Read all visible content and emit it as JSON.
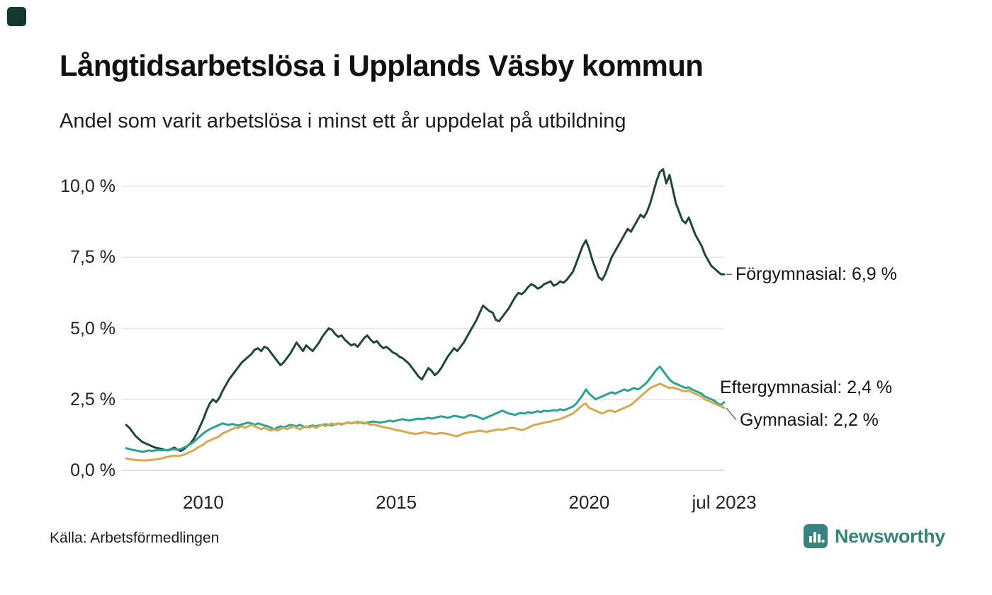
{
  "page": {
    "source": "Källa: Arbetsförmedlingen",
    "brand": {
      "name": "Newsworthy",
      "color": "#3a837c",
      "icon": "bar-chart-icon"
    }
  },
  "chart_data": {
    "type": "line",
    "title": "Långtidsarbetslösa i Upplands Väsby kommun",
    "subtitle": "Andel som varit arbetslösa i minst ett år uppdelat på utbildning",
    "x_unit": "month",
    "x_start_year": 2008,
    "x_end_label": "jul 2023",
    "x_ticks": [
      {
        "t": 2010,
        "label": "2010"
      },
      {
        "t": 2015,
        "label": "2015"
      },
      {
        "t": 2020,
        "label": "2020"
      },
      {
        "t": 2023.5,
        "label": "jul 2023"
      }
    ],
    "y_ticks": [
      {
        "v": 0,
        "label": "0,0 %"
      },
      {
        "v": 2.5,
        "label": "2,5 %"
      },
      {
        "v": 5,
        "label": "5,0 %"
      },
      {
        "v": 7.5,
        "label": "7,5 %"
      },
      {
        "v": 10,
        "label": "10,0 %"
      }
    ],
    "ylim": [
      0,
      10.8
    ],
    "grid": true,
    "legend_position": "end-of-line-labels",
    "series": [
      {
        "name": "Förgymnasial",
        "slug": "forgymnasial",
        "color": "#20453f",
        "end_value": 6.9,
        "end_label": "Förgymnasial: 6,9 %",
        "label_dy": 0,
        "label_x": 1038,
        "values": [
          1.6,
          1.5,
          1.35,
          1.2,
          1.1,
          1.0,
          0.95,
          0.9,
          0.85,
          0.8,
          0.78,
          0.75,
          0.72,
          0.7,
          0.75,
          0.8,
          0.72,
          0.68,
          0.75,
          0.85,
          0.95,
          1.1,
          1.3,
          1.55,
          1.8,
          2.1,
          2.35,
          2.5,
          2.4,
          2.55,
          2.8,
          3.0,
          3.2,
          3.35,
          3.5,
          3.65,
          3.8,
          3.9,
          4.0,
          4.1,
          4.25,
          4.3,
          4.2,
          4.35,
          4.3,
          4.15,
          4.0,
          3.85,
          3.7,
          3.8,
          3.95,
          4.1,
          4.3,
          4.5,
          4.35,
          4.2,
          4.4,
          4.3,
          4.2,
          4.35,
          4.5,
          4.7,
          4.85,
          5.0,
          4.95,
          4.8,
          4.7,
          4.75,
          4.6,
          4.5,
          4.4,
          4.45,
          4.35,
          4.5,
          4.65,
          4.75,
          4.6,
          4.5,
          4.55,
          4.4,
          4.3,
          4.35,
          4.25,
          4.15,
          4.1,
          4.0,
          3.95,
          3.85,
          3.75,
          3.6,
          3.45,
          3.3,
          3.2,
          3.4,
          3.6,
          3.5,
          3.35,
          3.45,
          3.6,
          3.8,
          4.0,
          4.15,
          4.3,
          4.2,
          4.35,
          4.5,
          4.7,
          4.9,
          5.1,
          5.3,
          5.55,
          5.8,
          5.7,
          5.6,
          5.55,
          5.3,
          5.25,
          5.4,
          5.55,
          5.7,
          5.9,
          6.1,
          6.25,
          6.2,
          6.3,
          6.45,
          6.55,
          6.5,
          6.4,
          6.45,
          6.55,
          6.6,
          6.65,
          6.5,
          6.55,
          6.65,
          6.6,
          6.7,
          6.85,
          7.0,
          7.3,
          7.6,
          7.9,
          8.1,
          7.8,
          7.4,
          7.1,
          6.8,
          6.7,
          6.9,
          7.2,
          7.5,
          7.7,
          7.9,
          8.1,
          8.3,
          8.5,
          8.4,
          8.6,
          8.8,
          9.0,
          8.9,
          9.1,
          9.4,
          9.8,
          10.2,
          10.5,
          10.6,
          10.1,
          10.4,
          9.9,
          9.4,
          9.1,
          8.8,
          8.7,
          8.9,
          8.6,
          8.3,
          8.1,
          7.9,
          7.6,
          7.4,
          7.2,
          7.1,
          7.0,
          6.9,
          6.9
        ]
      },
      {
        "name": "Eftergymnasial",
        "slug": "eftergymnasial",
        "color": "#29a294",
        "end_value": 2.4,
        "end_label": "Eftergymnasial: 2,4 %",
        "label_dy": -21,
        "label_x": 1016,
        "values": [
          0.78,
          0.75,
          0.72,
          0.7,
          0.68,
          0.65,
          0.67,
          0.7,
          0.68,
          0.7,
          0.72,
          0.7,
          0.72,
          0.7,
          0.73,
          0.75,
          0.72,
          0.75,
          0.8,
          0.85,
          0.92,
          1.0,
          1.1,
          1.2,
          1.3,
          1.38,
          1.45,
          1.5,
          1.55,
          1.6,
          1.65,
          1.62,
          1.6,
          1.63,
          1.6,
          1.58,
          1.62,
          1.65,
          1.68,
          1.65,
          1.6,
          1.65,
          1.62,
          1.58,
          1.55,
          1.5,
          1.45,
          1.5,
          1.55,
          1.52,
          1.55,
          1.6,
          1.58,
          1.55,
          1.6,
          1.55,
          1.52,
          1.55,
          1.58,
          1.55,
          1.58,
          1.6,
          1.62,
          1.6,
          1.58,
          1.62,
          1.65,
          1.62,
          1.65,
          1.68,
          1.65,
          1.68,
          1.7,
          1.68,
          1.65,
          1.68,
          1.7,
          1.72,
          1.7,
          1.68,
          1.7,
          1.72,
          1.75,
          1.72,
          1.75,
          1.78,
          1.8,
          1.78,
          1.75,
          1.78,
          1.8,
          1.82,
          1.8,
          1.82,
          1.85,
          1.82,
          1.85,
          1.88,
          1.9,
          1.88,
          1.85,
          1.88,
          1.92,
          1.9,
          1.88,
          1.85,
          1.9,
          1.95,
          1.92,
          1.9,
          1.85,
          1.8,
          1.85,
          1.9,
          1.95,
          2.0,
          2.05,
          2.1,
          2.05,
          2.0,
          1.98,
          1.95,
          2.0,
          2.02,
          2.0,
          2.05,
          2.02,
          2.05,
          2.08,
          2.05,
          2.1,
          2.08,
          2.1,
          2.12,
          2.1,
          2.15,
          2.12,
          2.15,
          2.2,
          2.25,
          2.35,
          2.5,
          2.65,
          2.85,
          2.7,
          2.6,
          2.5,
          2.55,
          2.6,
          2.65,
          2.7,
          2.75,
          2.7,
          2.75,
          2.8,
          2.85,
          2.8,
          2.85,
          2.9,
          2.85,
          2.9,
          3.0,
          3.1,
          3.25,
          3.4,
          3.55,
          3.65,
          3.5,
          3.35,
          3.2,
          3.1,
          3.05,
          3.0,
          2.95,
          2.9,
          2.92,
          2.85,
          2.8,
          2.75,
          2.7,
          2.6,
          2.55,
          2.5,
          2.45,
          2.35,
          2.3,
          2.4
        ]
      },
      {
        "name": "Gymnasial",
        "slug": "gymnasial",
        "color": "#d7a94f",
        "end_value": 2.2,
        "end_label": "Gymnasial: 2,2 %",
        "label_dy": 17,
        "label_x": 1044,
        "values": [
          0.42,
          0.4,
          0.38,
          0.37,
          0.36,
          0.35,
          0.35,
          0.36,
          0.37,
          0.38,
          0.4,
          0.42,
          0.45,
          0.48,
          0.5,
          0.52,
          0.5,
          0.52,
          0.55,
          0.6,
          0.65,
          0.7,
          0.78,
          0.85,
          0.9,
          1.0,
          1.05,
          1.1,
          1.15,
          1.2,
          1.3,
          1.35,
          1.4,
          1.45,
          1.5,
          1.5,
          1.55,
          1.5,
          1.55,
          1.6,
          1.55,
          1.5,
          1.45,
          1.5,
          1.45,
          1.4,
          1.45,
          1.4,
          1.45,
          1.5,
          1.45,
          1.5,
          1.55,
          1.5,
          1.45,
          1.5,
          1.55,
          1.5,
          1.55,
          1.5,
          1.55,
          1.6,
          1.55,
          1.6,
          1.65,
          1.6,
          1.65,
          1.6,
          1.65,
          1.7,
          1.65,
          1.7,
          1.65,
          1.7,
          1.68,
          1.65,
          1.6,
          1.62,
          1.58,
          1.55,
          1.52,
          1.5,
          1.48,
          1.45,
          1.42,
          1.4,
          1.38,
          1.35,
          1.32,
          1.3,
          1.28,
          1.3,
          1.32,
          1.35,
          1.32,
          1.3,
          1.28,
          1.3,
          1.32,
          1.3,
          1.28,
          1.25,
          1.22,
          1.2,
          1.25,
          1.3,
          1.32,
          1.35,
          1.35,
          1.38,
          1.4,
          1.38,
          1.35,
          1.38,
          1.4,
          1.42,
          1.45,
          1.42,
          1.45,
          1.48,
          1.5,
          1.48,
          1.45,
          1.42,
          1.45,
          1.5,
          1.55,
          1.6,
          1.62,
          1.65,
          1.68,
          1.7,
          1.72,
          1.75,
          1.78,
          1.8,
          1.85,
          1.9,
          1.95,
          2.0,
          2.1,
          2.2,
          2.3,
          2.35,
          2.2,
          2.15,
          2.1,
          2.05,
          2.0,
          2.05,
          2.1,
          2.1,
          2.05,
          2.1,
          2.15,
          2.2,
          2.25,
          2.3,
          2.4,
          2.5,
          2.6,
          2.7,
          2.8,
          2.9,
          2.95,
          3.0,
          3.05,
          3.0,
          2.95,
          2.9,
          2.92,
          2.88,
          2.85,
          2.8,
          2.78,
          2.82,
          2.75,
          2.7,
          2.65,
          2.6,
          2.5,
          2.45,
          2.4,
          2.35,
          2.3,
          2.25,
          2.2
        ]
      }
    ]
  }
}
